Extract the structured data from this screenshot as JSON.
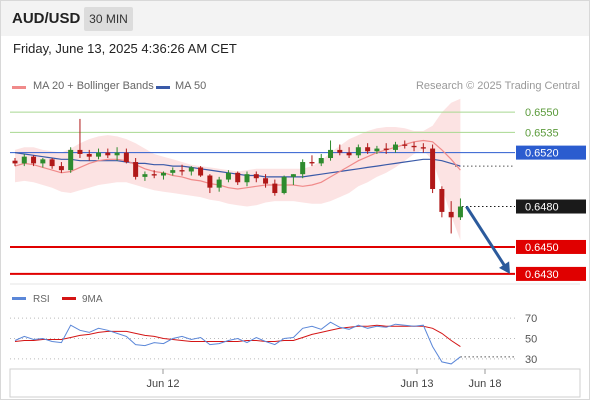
{
  "header": {
    "pair": "AUD/USD",
    "timeframe": "30 MIN"
  },
  "timestamp": "Friday, June 13, 2025 4:36:26 AM CET",
  "legend": {
    "ma20": "MA 20 + Bollinger Bands",
    "ma50": "MA 50",
    "credit": "Research © 2025 Trading Central",
    "rsi": "RSI",
    "rsi_ma": "9MA"
  },
  "colors": {
    "ma20": "#f08a8a",
    "ma50": "#3a5aa8",
    "bands": "#fcdede",
    "resistance": "#a8d890",
    "pivot": "#2b5ccf",
    "support": "#e00000",
    "current": "#1a1a1a",
    "rsi": "#5b87d8",
    "rsi_ma": "#d41515",
    "bull": "#2e8b2e",
    "bear": "#b01818"
  },
  "chart_data": [
    {
      "type": "candlestick",
      "ylim": [
        0.6424,
        0.6562
      ],
      "x_ticks": [
        "Jun 12",
        "Jun 13",
        "Jun 18"
      ],
      "levels": [
        {
          "label": "0.6550",
          "value": 0.655,
          "kind": "resistance"
        },
        {
          "label": "0.6535",
          "value": 0.6535,
          "kind": "resistance"
        },
        {
          "label": "0.6520",
          "value": 0.652,
          "kind": "pivot"
        },
        {
          "label": "0.6480",
          "value": 0.648,
          "kind": "current"
        },
        {
          "label": "0.6450",
          "value": 0.645,
          "kind": "support"
        },
        {
          "label": "0.6430",
          "value": 0.643,
          "kind": "support"
        }
      ],
      "forecast": {
        "from": 0.648,
        "to": 0.643,
        "direction": "down"
      },
      "ma20": [
        0.651,
        0.6512,
        0.6511,
        0.6509,
        0.6507,
        0.6505,
        0.6506,
        0.6509,
        0.6512,
        0.6514,
        0.6515,
        0.6515,
        0.6514,
        0.6511,
        0.6508,
        0.6506,
        0.6505,
        0.6503,
        0.6502,
        0.65,
        0.6499,
        0.6497,
        0.6496,
        0.6494,
        0.6493,
        0.6494,
        0.6495,
        0.6496,
        0.6496,
        0.6496,
        0.6496,
        0.6495,
        0.6496,
        0.6498,
        0.6502,
        0.6506,
        0.651,
        0.6514,
        0.6517,
        0.652,
        0.6522,
        0.6524,
        0.6526,
        0.6528,
        0.6529,
        0.6528,
        0.6522,
        0.6515,
        0.6507
      ],
      "ma50": [
        0.652,
        0.6519,
        0.6518,
        0.6517,
        0.6516,
        0.6515,
        0.6515,
        0.6514,
        0.6514,
        0.6514,
        0.6514,
        0.6514,
        0.6513,
        0.6512,
        0.6512,
        0.6511,
        0.6511,
        0.651,
        0.651,
        0.6509,
        0.6508,
        0.6507,
        0.6506,
        0.6505,
        0.6504,
        0.6503,
        0.6503,
        0.6502,
        0.6502,
        0.6502,
        0.6502,
        0.6502,
        0.6503,
        0.6504,
        0.6505,
        0.6506,
        0.6507,
        0.6508,
        0.6509,
        0.651,
        0.6511,
        0.6512,
        0.6513,
        0.6514,
        0.6515,
        0.6515,
        0.6514,
        0.6512,
        0.651
      ],
      "band_upper": [
        0.6522,
        0.6524,
        0.6524,
        0.6522,
        0.6521,
        0.652,
        0.6523,
        0.6527,
        0.653,
        0.6532,
        0.6533,
        0.6532,
        0.653,
        0.6527,
        0.6523,
        0.6519,
        0.6517,
        0.6515,
        0.6513,
        0.6511,
        0.651,
        0.6509,
        0.6508,
        0.6507,
        0.6506,
        0.6507,
        0.6508,
        0.6508,
        0.6508,
        0.6508,
        0.6508,
        0.6508,
        0.651,
        0.6514,
        0.652,
        0.6525,
        0.653,
        0.6533,
        0.6536,
        0.6538,
        0.6539,
        0.6539,
        0.6538,
        0.6536,
        0.6536,
        0.654,
        0.655,
        0.6557,
        0.656
      ],
      "band_lower": [
        0.6498,
        0.6499,
        0.6498,
        0.6496,
        0.6494,
        0.6491,
        0.649,
        0.6492,
        0.6494,
        0.6496,
        0.6497,
        0.6498,
        0.6498,
        0.6496,
        0.6494,
        0.6492,
        0.6491,
        0.649,
        0.6489,
        0.6488,
        0.6487,
        0.6485,
        0.6484,
        0.6482,
        0.6481,
        0.648,
        0.6481,
        0.6483,
        0.6484,
        0.6484,
        0.6484,
        0.6483,
        0.6482,
        0.6482,
        0.6484,
        0.6487,
        0.649,
        0.6495,
        0.6498,
        0.6502,
        0.6505,
        0.6509,
        0.6514,
        0.6519,
        0.6522,
        0.6514,
        0.6494,
        0.6473,
        0.6455
      ],
      "candles": [
        [
          0.6514,
          0.6516,
          0.651,
          0.6512
        ],
        [
          0.6512,
          0.6519,
          0.651,
          0.6517
        ],
        [
          0.6517,
          0.6518,
          0.651,
          0.6512
        ],
        [
          0.6512,
          0.6516,
          0.6509,
          0.6515
        ],
        [
          0.6515,
          0.6516,
          0.6508,
          0.651
        ],
        [
          0.651,
          0.6513,
          0.6505,
          0.6507
        ],
        [
          0.6507,
          0.6524,
          0.6505,
          0.6522
        ],
        [
          0.6522,
          0.6545,
          0.6516,
          0.6519
        ],
        [
          0.6519,
          0.6522,
          0.6514,
          0.6517
        ],
        [
          0.6517,
          0.6523,
          0.6515,
          0.652
        ],
        [
          0.652,
          0.6523,
          0.6516,
          0.6518
        ],
        [
          0.6518,
          0.6524,
          0.6514,
          0.652
        ],
        [
          0.652,
          0.6523,
          0.6512,
          0.6513
        ],
        [
          0.6513,
          0.6516,
          0.65,
          0.6502
        ],
        [
          0.6502,
          0.6506,
          0.6499,
          0.6504
        ],
        [
          0.6504,
          0.6507,
          0.6501,
          0.6503
        ],
        [
          0.6503,
          0.6506,
          0.65,
          0.6505
        ],
        [
          0.6505,
          0.6509,
          0.6503,
          0.6507
        ],
        [
          0.6507,
          0.6511,
          0.6503,
          0.6506
        ],
        [
          0.6506,
          0.651,
          0.6503,
          0.6509
        ],
        [
          0.6509,
          0.651,
          0.6502,
          0.6503
        ],
        [
          0.6503,
          0.6504,
          0.649,
          0.6494
        ],
        [
          0.6494,
          0.6502,
          0.6491,
          0.65
        ],
        [
          0.65,
          0.6507,
          0.6498,
          0.6505
        ],
        [
          0.6505,
          0.6506,
          0.6496,
          0.6498
        ],
        [
          0.6498,
          0.6506,
          0.6495,
          0.6504
        ],
        [
          0.6504,
          0.6506,
          0.6498,
          0.6501
        ],
        [
          0.6501,
          0.6504,
          0.6494,
          0.6497
        ],
        [
          0.6497,
          0.65,
          0.6488,
          0.649
        ],
        [
          0.649,
          0.6503,
          0.6489,
          0.6502
        ],
        [
          0.6502,
          0.6504,
          0.6496,
          0.6504
        ],
        [
          0.6504,
          0.6515,
          0.6501,
          0.6513
        ],
        [
          0.6513,
          0.6518,
          0.651,
          0.6512
        ],
        [
          0.6512,
          0.6519,
          0.651,
          0.6516
        ],
        [
          0.6516,
          0.6529,
          0.6514,
          0.6522
        ],
        [
          0.6522,
          0.6526,
          0.6518,
          0.652
        ],
        [
          0.652,
          0.6524,
          0.6516,
          0.6518
        ],
        [
          0.6518,
          0.6526,
          0.6516,
          0.6524
        ],
        [
          0.6524,
          0.6527,
          0.6519,
          0.6521
        ],
        [
          0.6521,
          0.6525,
          0.6519,
          0.6523
        ],
        [
          0.6523,
          0.6527,
          0.6519,
          0.6522
        ],
        [
          0.6522,
          0.6528,
          0.652,
          0.6526
        ],
        [
          0.6526,
          0.6529,
          0.6523,
          0.6525
        ],
        [
          0.6525,
          0.6528,
          0.6521,
          0.6524
        ],
        [
          0.6524,
          0.6527,
          0.652,
          0.6523
        ],
        [
          0.6523,
          0.6526,
          0.649,
          0.6493
        ],
        [
          0.6493,
          0.6495,
          0.6472,
          0.6476
        ],
        [
          0.6476,
          0.6484,
          0.646,
          0.6472
        ],
        [
          0.6472,
          0.6486,
          0.647,
          0.648
        ]
      ]
    },
    {
      "type": "line",
      "name_rsi": "RSI",
      "ylim": [
        22,
        76
      ],
      "y_ticks": [
        70,
        50,
        30
      ],
      "rsi": [
        48,
        52,
        49,
        50,
        47,
        46,
        63,
        58,
        56,
        60,
        58,
        55,
        52,
        44,
        43,
        46,
        45,
        50,
        52,
        49,
        51,
        44,
        45,
        48,
        50,
        46,
        51,
        47,
        44,
        50,
        51,
        60,
        62,
        59,
        66,
        61,
        59,
        63,
        60,
        62,
        61,
        64,
        63,
        62,
        63,
        42,
        27,
        25,
        32
      ],
      "rsi_ma": [
        47,
        48,
        48,
        49,
        49,
        49,
        51,
        53,
        54,
        56,
        57,
        57,
        57,
        55,
        53,
        52,
        50,
        49,
        48,
        47,
        47,
        47,
        47,
        47,
        47,
        48,
        48,
        47,
        47,
        48,
        48,
        51,
        54,
        56,
        58,
        60,
        61,
        62,
        62,
        63,
        62,
        62,
        62,
        62,
        62,
        60,
        55,
        48,
        42
      ]
    }
  ]
}
